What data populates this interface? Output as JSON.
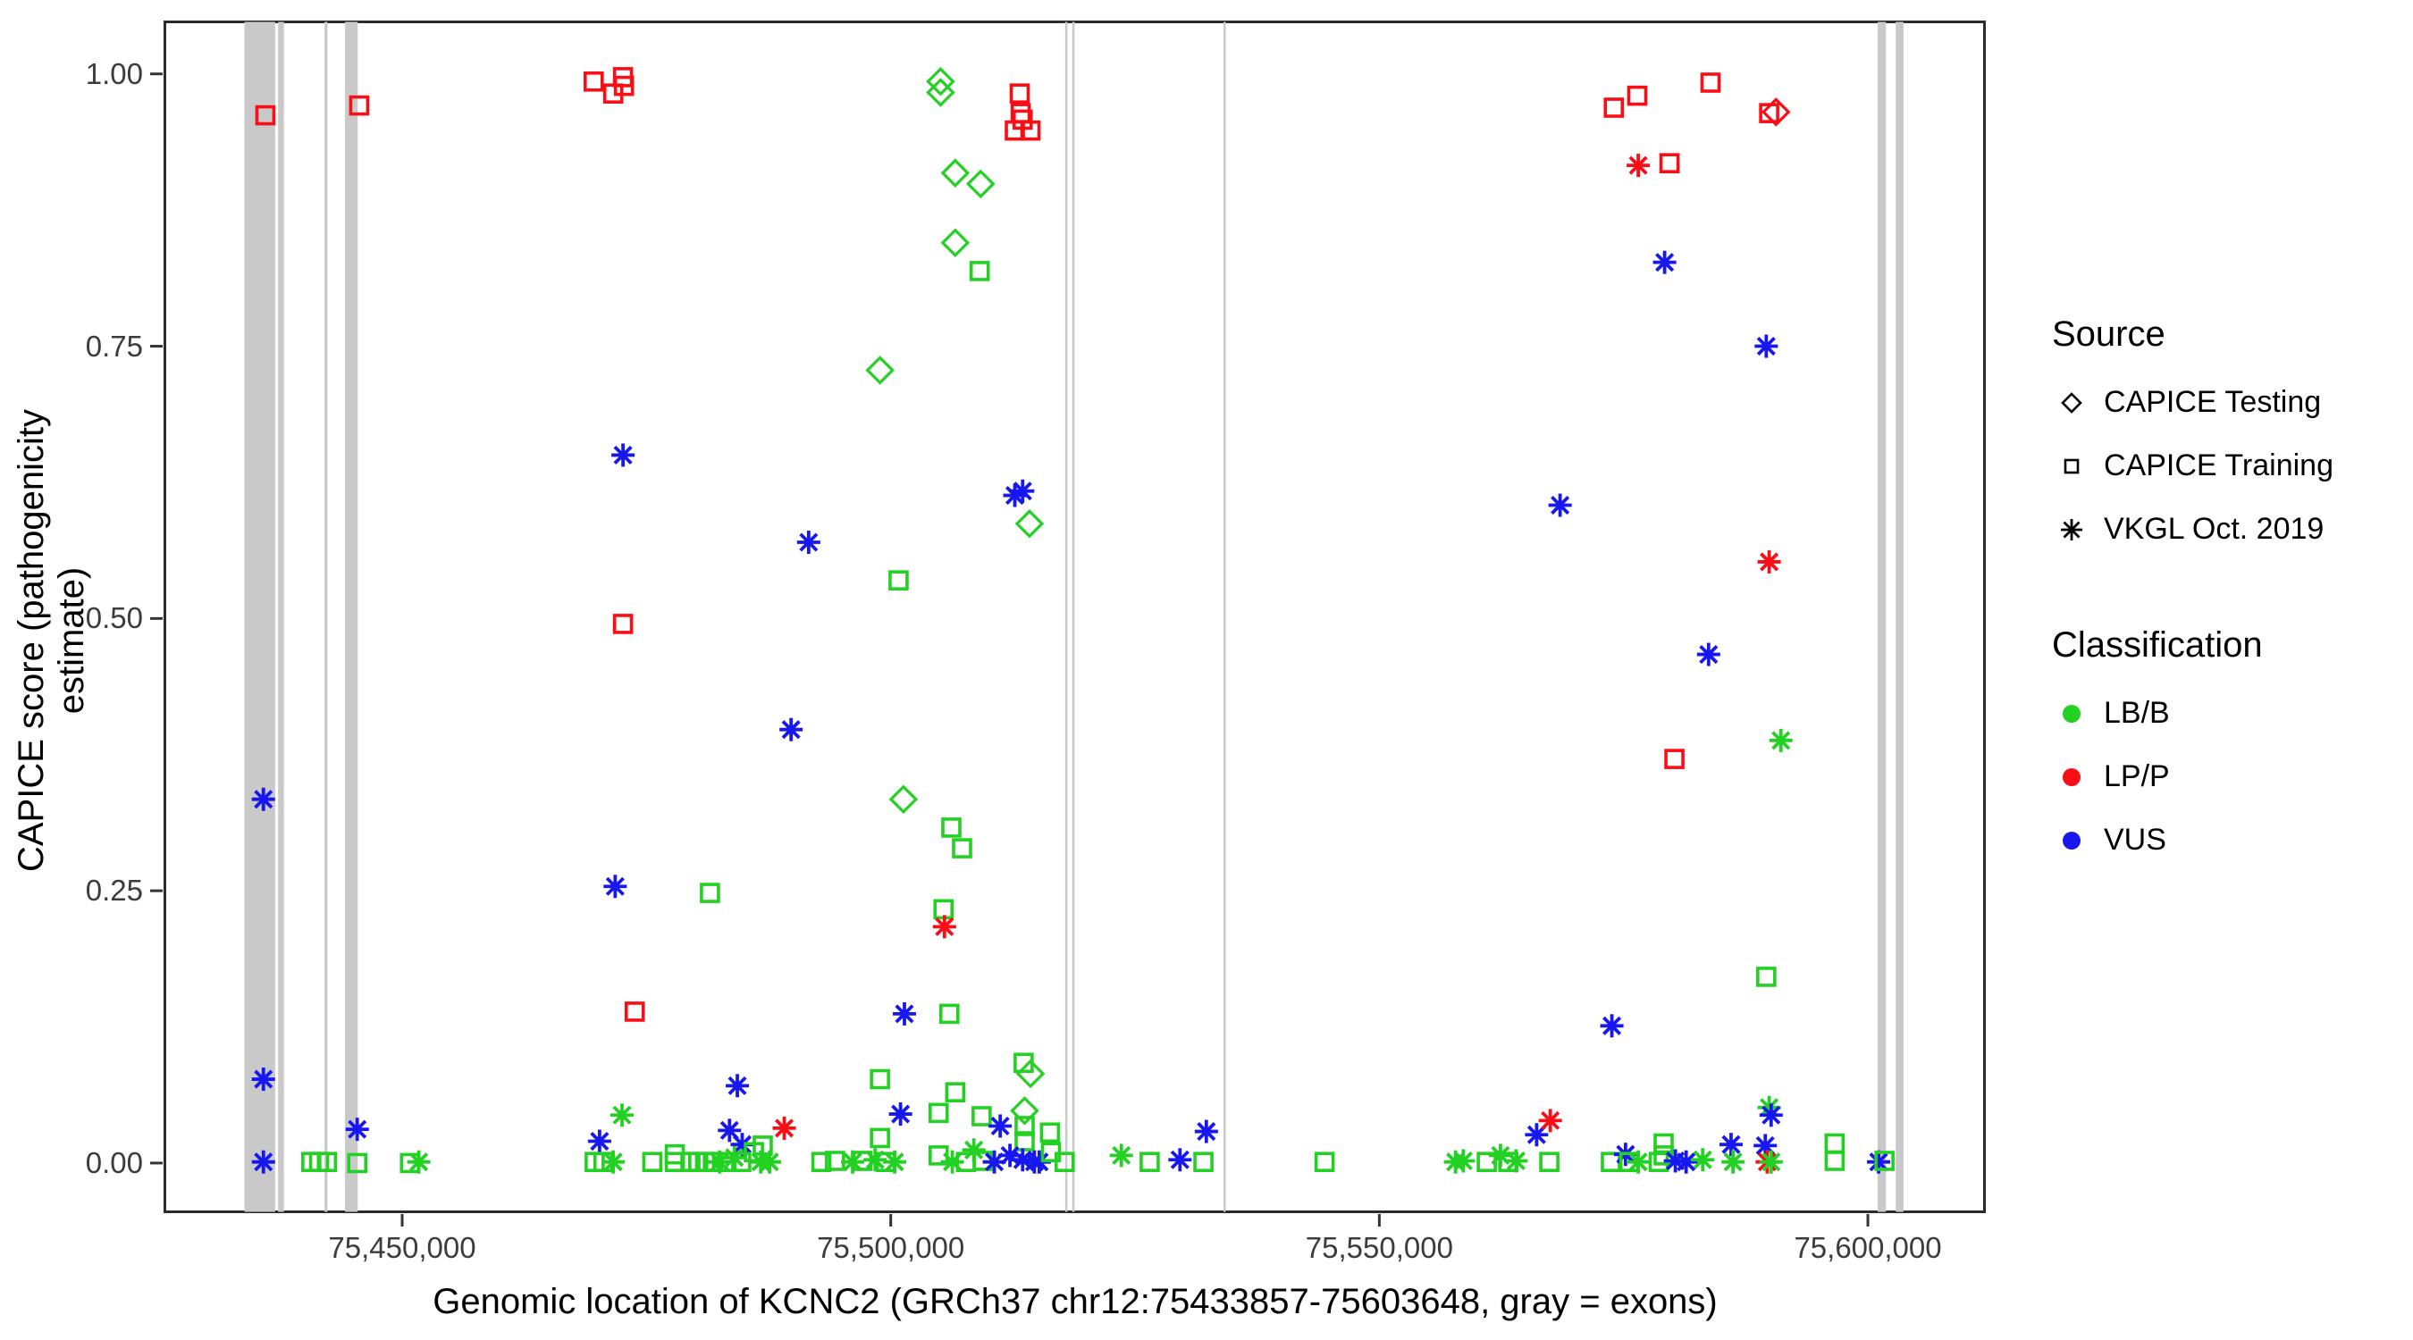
{
  "chart_data": {
    "type": "scatter",
    "title": "",
    "xlabel": "Genomic location of KCNC2 (GRCh37 chr12:75433857-75603648, gray = exons)",
    "ylabel": "CAPICE score (pathogenicity estimate)",
    "xlim": [
      75425578,
      75612070
    ],
    "ylim": [
      -0.046,
      1.049
    ],
    "grid": "off",
    "legend_position": "right",
    "x_ticks": [
      {
        "value": 75450000,
        "label": "75,450,000"
      },
      {
        "value": 75500000,
        "label": "75,500,000"
      },
      {
        "value": 75550000,
        "label": "75,550,000"
      },
      {
        "value": 75600000,
        "label": "75,600,000"
      }
    ],
    "y_ticks": [
      {
        "value": 0.0,
        "label": "0.00"
      },
      {
        "value": 0.25,
        "label": "0.25"
      },
      {
        "value": 0.5,
        "label": "0.50"
      },
      {
        "value": 0.75,
        "label": "0.75"
      },
      {
        "value": 1.0,
        "label": "1.00"
      }
    ],
    "legend": {
      "source": {
        "title": "Source",
        "items": [
          {
            "key": "tst",
            "marker": "diamond",
            "label": "CAPICE Testing"
          },
          {
            "key": "trn",
            "marker": "square",
            "label": "CAPICE Training"
          },
          {
            "key": "vkgl",
            "marker": "asterisk",
            "label": "VKGL Oct. 2019"
          }
        ]
      },
      "classification": {
        "title": "Classification",
        "items": [
          {
            "key": "B",
            "label": "LB/B"
          },
          {
            "key": "P",
            "label": "LP/P"
          },
          {
            "key": "V",
            "label": "VUS"
          }
        ]
      }
    },
    "colors": {
      "B": "#23d123",
      "P": "#fb0d15",
      "V": "#1717ef",
      "exon": "#c9c9c9"
    },
    "exons_note": "gray vertical bands = exons, genomic start/end in bp",
    "exons": [
      [
        75433857,
        75437000
      ],
      [
        75437300,
        75437900
      ],
      [
        75442050,
        75442350
      ],
      [
        75444150,
        75445450
      ],
      [
        75517850,
        75518060
      ],
      [
        75518580,
        75518790
      ],
      [
        75534050,
        75534260
      ],
      [
        75601000,
        75601850
      ],
      [
        75602850,
        75603648
      ]
    ],
    "points_format": [
      "source",
      "classification",
      "bp",
      "capice_score"
    ],
    "points": [
      [
        "trn",
        "P",
        75436000,
        0.962
      ],
      [
        "trn",
        "P",
        75445600,
        0.971
      ],
      [
        "vkgl",
        "V",
        75435800,
        0.334
      ],
      [
        "vkgl",
        "V",
        75435800,
        0.077
      ],
      [
        "vkgl",
        "V",
        75435800,
        0.001
      ],
      [
        "vkgl",
        "V",
        75445400,
        0.031
      ],
      [
        "trn",
        "B",
        75440700,
        0.001
      ],
      [
        "trn",
        "B",
        75441500,
        0.001
      ],
      [
        "trn",
        "B",
        75442300,
        0.001
      ],
      [
        "trn",
        "B",
        75445400,
        0.0
      ],
      [
        "trn",
        "B",
        75450800,
        0.0
      ],
      [
        "vkgl",
        "B",
        75451700,
        0.001
      ],
      [
        "trn",
        "P",
        75469600,
        0.993
      ],
      [
        "trn",
        "P",
        75472600,
        0.997
      ],
      [
        "trn",
        "P",
        75472700,
        0.989
      ],
      [
        "trn",
        "P",
        75471600,
        0.982
      ],
      [
        "trn",
        "P",
        75472600,
        0.495
      ],
      [
        "vkgl",
        "V",
        75472600,
        0.65
      ],
      [
        "vkgl",
        "V",
        75471800,
        0.254
      ],
      [
        "trn",
        "P",
        75473800,
        0.139
      ],
      [
        "vkgl",
        "B",
        75472500,
        0.044
      ],
      [
        "vkgl",
        "V",
        75470200,
        0.02
      ],
      [
        "trn",
        "B",
        75469700,
        0.001
      ],
      [
        "trn",
        "B",
        75470600,
        0.001
      ],
      [
        "vkgl",
        "B",
        75471600,
        0.001
      ],
      [
        "vkgl",
        "V",
        75491600,
        0.57
      ],
      [
        "vkgl",
        "V",
        75489800,
        0.398
      ],
      [
        "trn",
        "B",
        75481500,
        0.248
      ],
      [
        "vkgl",
        "V",
        75484300,
        0.071
      ],
      [
        "vkgl",
        "V",
        75483500,
        0.03
      ],
      [
        "vkgl",
        "V",
        75484800,
        0.017
      ],
      [
        "vkgl",
        "P",
        75489100,
        0.032
      ],
      [
        "trn",
        "B",
        75486900,
        0.016
      ],
      [
        "trn",
        "B",
        75475600,
        0.001
      ],
      [
        "trn",
        "B",
        75477900,
        0.008
      ],
      [
        "trn",
        "B",
        75477900,
        0.001
      ],
      [
        "trn",
        "B",
        75479500,
        0.001
      ],
      [
        "trn",
        "B",
        75480300,
        0.001
      ],
      [
        "trn",
        "B",
        75481000,
        0.001
      ],
      [
        "trn",
        "B",
        75481800,
        0.001
      ],
      [
        "vkgl",
        "B",
        75482500,
        0.001
      ],
      [
        "trn",
        "B",
        75483200,
        0.001
      ],
      [
        "vkgl",
        "B",
        75484000,
        0.005
      ],
      [
        "trn",
        "B",
        75484700,
        0.001
      ],
      [
        "trn",
        "B",
        75486000,
        0.01
      ],
      [
        "vkgl",
        "B",
        75486700,
        0.001
      ],
      [
        "vkgl",
        "B",
        75487600,
        0.001
      ],
      [
        "tst",
        "B",
        75505100,
        0.993
      ],
      [
        "tst",
        "B",
        75505100,
        0.983
      ],
      [
        "trn",
        "P",
        75513200,
        0.982
      ],
      [
        "trn",
        "P",
        75513300,
        0.964
      ],
      [
        "trn",
        "P",
        75513500,
        0.958
      ],
      [
        "trn",
        "P",
        75512700,
        0.948
      ],
      [
        "trn",
        "P",
        75514300,
        0.948
      ],
      [
        "tst",
        "B",
        75506600,
        0.909
      ],
      [
        "tst",
        "B",
        75509200,
        0.899
      ],
      [
        "tst",
        "B",
        75506600,
        0.845
      ],
      [
        "trn",
        "B",
        75509100,
        0.819
      ],
      [
        "tst",
        "B",
        75498900,
        0.728
      ],
      [
        "vkgl",
        "V",
        75512700,
        0.613
      ],
      [
        "vkgl",
        "V",
        75513500,
        0.617
      ],
      [
        "tst",
        "B",
        75514200,
        0.587
      ],
      [
        "trn",
        "B",
        75500800,
        0.535
      ],
      [
        "tst",
        "B",
        75501300,
        0.334
      ],
      [
        "trn",
        "B",
        75506200,
        0.308
      ],
      [
        "trn",
        "B",
        75507300,
        0.289
      ],
      [
        "trn",
        "B",
        75505400,
        0.233
      ],
      [
        "vkgl",
        "P",
        75505500,
        0.217
      ],
      [
        "vkgl",
        "V",
        75501400,
        0.137
      ],
      [
        "trn",
        "B",
        75506000,
        0.137
      ],
      [
        "trn",
        "B",
        75498900,
        0.077
      ],
      [
        "vkgl",
        "V",
        75501000,
        0.045
      ],
      [
        "trn",
        "B",
        75498900,
        0.023
      ],
      [
        "trn",
        "B",
        75504900,
        0.046
      ],
      [
        "trn",
        "B",
        75506600,
        0.065
      ],
      [
        "trn",
        "B",
        75509300,
        0.043
      ],
      [
        "vkgl",
        "V",
        75511200,
        0.034
      ],
      [
        "trn",
        "B",
        75513600,
        0.092
      ],
      [
        "tst",
        "B",
        75514300,
        0.082
      ],
      [
        "tst",
        "B",
        75513700,
        0.048
      ],
      [
        "trn",
        "B",
        75513700,
        0.034
      ],
      [
        "trn",
        "B",
        75513700,
        0.02
      ],
      [
        "vkgl",
        "V",
        75512200,
        0.007
      ],
      [
        "vkgl",
        "V",
        75513500,
        0.003
      ],
      [
        "vkgl",
        "V",
        75514700,
        0.001
      ],
      [
        "vkgl",
        "V",
        75515200,
        0.001
      ],
      [
        "trn",
        "B",
        75516300,
        0.028
      ],
      [
        "trn",
        "B",
        75516400,
        0.01
      ],
      [
        "trn",
        "B",
        75517800,
        0.001
      ],
      [
        "trn",
        "B",
        75492900,
        0.001
      ],
      [
        "trn",
        "B",
        75494300,
        0.002
      ],
      [
        "vkgl",
        "B",
        75496100,
        0.001
      ],
      [
        "trn",
        "B",
        75497100,
        0.002
      ],
      [
        "vkgl",
        "B",
        75498400,
        0.003
      ],
      [
        "trn",
        "B",
        75499500,
        0.001
      ],
      [
        "vkgl",
        "B",
        75500400,
        0.001
      ],
      [
        "trn",
        "B",
        75504900,
        0.007
      ],
      [
        "vkgl",
        "B",
        75506300,
        0.001
      ],
      [
        "trn",
        "B",
        75507700,
        0.001
      ],
      [
        "vkgl",
        "B",
        75508500,
        0.012
      ],
      [
        "trn",
        "B",
        75509400,
        0.002
      ],
      [
        "vkgl",
        "V",
        75510600,
        0.001
      ],
      [
        "vkgl",
        "B",
        75523600,
        0.007
      ],
      [
        "trn",
        "B",
        75526500,
        0.001
      ],
      [
        "vkgl",
        "V",
        75529600,
        0.003
      ],
      [
        "vkgl",
        "V",
        75532300,
        0.029
      ],
      [
        "trn",
        "B",
        75532000,
        0.001
      ],
      [
        "trn",
        "B",
        75544400,
        0.001
      ],
      [
        "vkgl",
        "B",
        75557800,
        0.001
      ],
      [
        "vkgl",
        "B",
        75558600,
        0.002
      ],
      [
        "trn",
        "B",
        75561000,
        0.001
      ],
      [
        "vkgl",
        "B",
        75562400,
        0.007
      ],
      [
        "trn",
        "B",
        75563200,
        0.001
      ],
      [
        "vkgl",
        "B",
        75564000,
        0.002
      ],
      [
        "vkgl",
        "V",
        75566100,
        0.026
      ],
      [
        "vkgl",
        "P",
        75567500,
        0.039
      ],
      [
        "trn",
        "B",
        75567400,
        0.001
      ],
      [
        "trn",
        "P",
        75574000,
        0.969
      ],
      [
        "trn",
        "P",
        75576400,
        0.98
      ],
      [
        "trn",
        "P",
        75583900,
        0.992
      ],
      [
        "trn",
        "P",
        75589900,
        0.964
      ],
      [
        "tst",
        "P",
        75590600,
        0.965
      ],
      [
        "vkgl",
        "P",
        75576500,
        0.916
      ],
      [
        "trn",
        "P",
        75579700,
        0.918
      ],
      [
        "vkgl",
        "V",
        75579200,
        0.827
      ],
      [
        "vkgl",
        "V",
        75589600,
        0.75
      ],
      [
        "vkgl",
        "V",
        75568500,
        0.604
      ],
      [
        "vkgl",
        "P",
        75589900,
        0.552
      ],
      [
        "vkgl",
        "V",
        75583700,
        0.467
      ],
      [
        "vkgl",
        "B",
        75591100,
        0.388
      ],
      [
        "trn",
        "P",
        75580200,
        0.371
      ],
      [
        "trn",
        "B",
        75589600,
        0.171
      ],
      [
        "vkgl",
        "V",
        75573800,
        0.126
      ],
      [
        "vkgl",
        "B",
        75589900,
        0.051
      ],
      [
        "vkgl",
        "V",
        75590100,
        0.044
      ],
      [
        "trn",
        "B",
        75573700,
        0.001
      ],
      [
        "vkgl",
        "V",
        75575200,
        0.008
      ],
      [
        "trn",
        "B",
        75575600,
        0.001
      ],
      [
        "vkgl",
        "B",
        75576500,
        0.001
      ],
      [
        "trn",
        "B",
        75579100,
        0.018
      ],
      [
        "trn",
        "B",
        75579100,
        0.007
      ],
      [
        "trn",
        "B",
        75578600,
        0.001
      ],
      [
        "vkgl",
        "V",
        75580300,
        0.002
      ],
      [
        "vkgl",
        "V",
        75581400,
        0.001
      ],
      [
        "vkgl",
        "B",
        75583100,
        0.003
      ],
      [
        "vkgl",
        "V",
        75586000,
        0.017
      ],
      [
        "vkgl",
        "B",
        75586200,
        0.001
      ],
      [
        "vkgl",
        "V",
        75589500,
        0.016
      ],
      [
        "vkgl",
        "P",
        75589700,
        0.001
      ],
      [
        "vkgl",
        "B",
        75590100,
        0.001
      ],
      [
        "trn",
        "B",
        75596600,
        0.018
      ],
      [
        "trn",
        "B",
        75596600,
        0.002
      ],
      [
        "vkgl",
        "V",
        75601100,
        0.001
      ],
      [
        "trn",
        "B",
        75601700,
        0.002
      ]
    ]
  }
}
